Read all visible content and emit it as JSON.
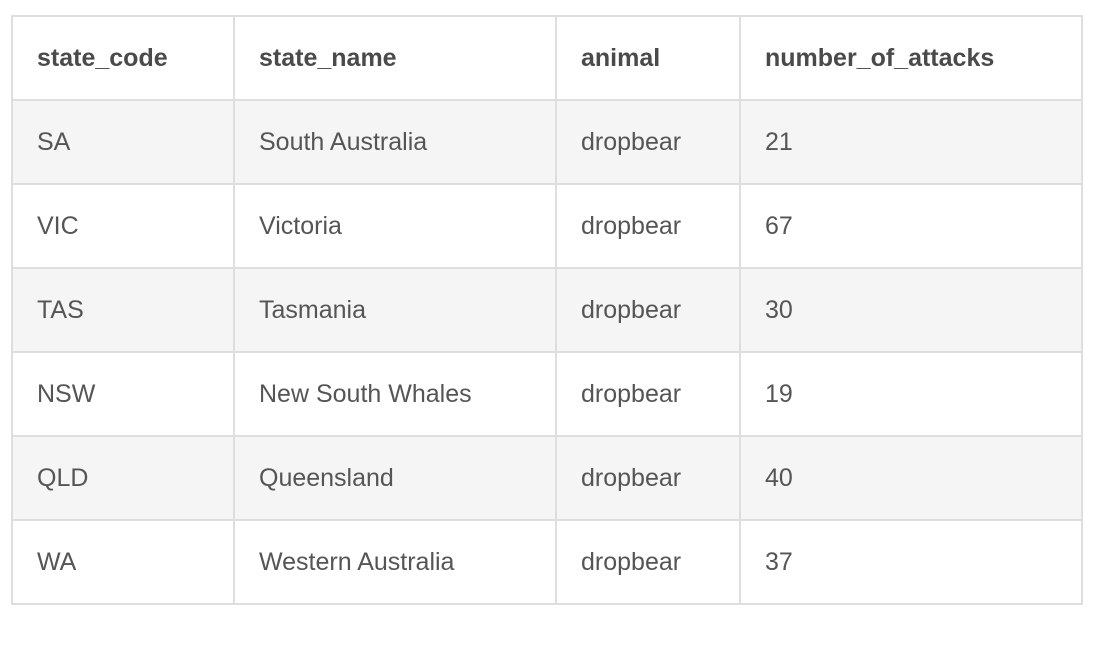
{
  "table": {
    "columns": [
      "state_code",
      "state_name",
      "animal",
      "number_of_attacks"
    ],
    "rows": [
      [
        "SA",
        "South Australia",
        "dropbear",
        "21"
      ],
      [
        "VIC",
        "Victoria",
        "dropbear",
        "67"
      ],
      [
        "TAS",
        "Tasmania",
        "dropbear",
        "30"
      ],
      [
        "NSW",
        "New South Whales",
        "dropbear",
        "19"
      ],
      [
        "QLD",
        "Queensland",
        "dropbear",
        "40"
      ],
      [
        "WA",
        "Western Australia",
        "dropbear",
        "37"
      ]
    ]
  },
  "colors": {
    "border": "#dedede",
    "stripe": "#f5f5f5",
    "text": "#555555",
    "header_text": "#4a4a4a"
  }
}
